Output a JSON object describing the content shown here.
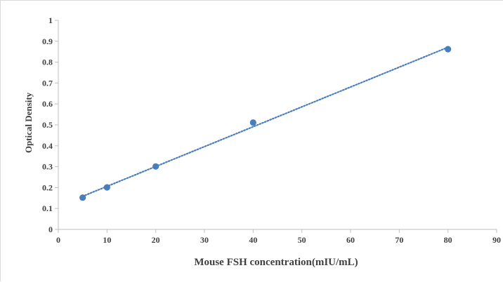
{
  "chart_data": {
    "type": "scatter",
    "title": "",
    "xlabel": "Mouse FSH concentration(mIU/mL)",
    "ylabel": "Optical Density",
    "xlim": [
      0,
      90
    ],
    "ylim": [
      0,
      1
    ],
    "x_ticks": [
      0,
      10,
      20,
      30,
      40,
      50,
      60,
      70,
      80,
      90
    ],
    "y_ticks": [
      0,
      0.1,
      0.2,
      0.3,
      0.4,
      0.5,
      0.6,
      0.7,
      0.8,
      0.9,
      1
    ],
    "grid": false,
    "legend": "none",
    "series": [
      {
        "x": [
          5,
          10,
          20,
          40,
          80
        ],
        "y": [
          0.152,
          0.201,
          0.301,
          0.511,
          0.862
        ],
        "color": "#4a7ebb",
        "trendline": "linear",
        "trendline_style": "dotted"
      }
    ],
    "axis_color": "#bfbfbf",
    "text_color": "#404040"
  }
}
